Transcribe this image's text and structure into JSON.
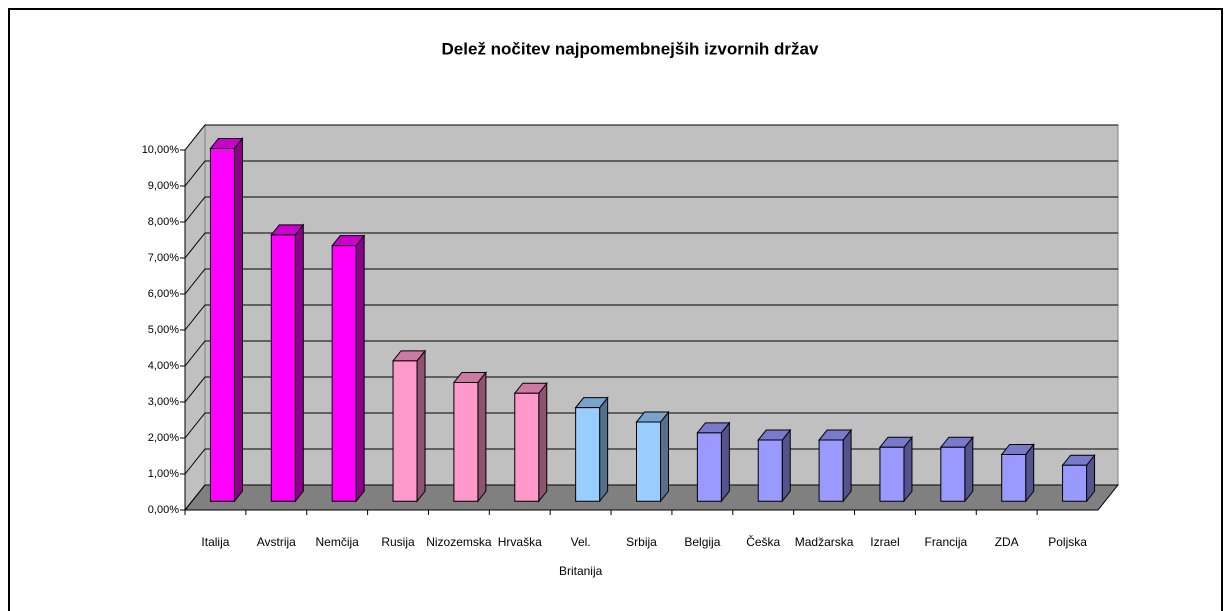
{
  "chart_data": {
    "type": "bar3d",
    "title": "Delež nočitev najpomembnejših izvornih držav",
    "categories": [
      "Italija",
      "Avstrija",
      "Nemčija",
      "Rusija",
      "Nizozemska",
      "Hrvaška",
      "Vel. Britanija",
      "Srbija",
      "Belgija",
      "Češka",
      "Madžarska",
      "Izrael",
      "Francija",
      "ZDA",
      "Poljska"
    ],
    "values": [
      9.8,
      7.4,
      7.1,
      3.9,
      3.3,
      3.0,
      2.6,
      2.2,
      1.9,
      1.7,
      1.7,
      1.5,
      1.5,
      1.3,
      1.0
    ],
    "colors": [
      "#ff00ff",
      "#ff00ff",
      "#ff00ff",
      "#ff99cc",
      "#ff99cc",
      "#ff99cc",
      "#99ccff",
      "#99ccff",
      "#9999ff",
      "#9999ff",
      "#9999ff",
      "#9999ff",
      "#9999ff",
      "#9999ff",
      "#9999ff"
    ],
    "ylim": [
      0,
      10
    ],
    "yticks": [
      {
        "value": 0,
        "label": "0,00%"
      },
      {
        "value": 1,
        "label": "1,00%"
      },
      {
        "value": 2,
        "label": "2,00%"
      },
      {
        "value": 3,
        "label": "3,00%"
      },
      {
        "value": 4,
        "label": "4,00%"
      },
      {
        "value": 5,
        "label": "5,00%"
      },
      {
        "value": 6,
        "label": "6,00%"
      },
      {
        "value": 7,
        "label": "7,00%"
      },
      {
        "value": 8,
        "label": "8,00%"
      },
      {
        "value": 9,
        "label": "9,00%"
      },
      {
        "value": 10,
        "label": "10,00%"
      }
    ],
    "grid": true
  }
}
